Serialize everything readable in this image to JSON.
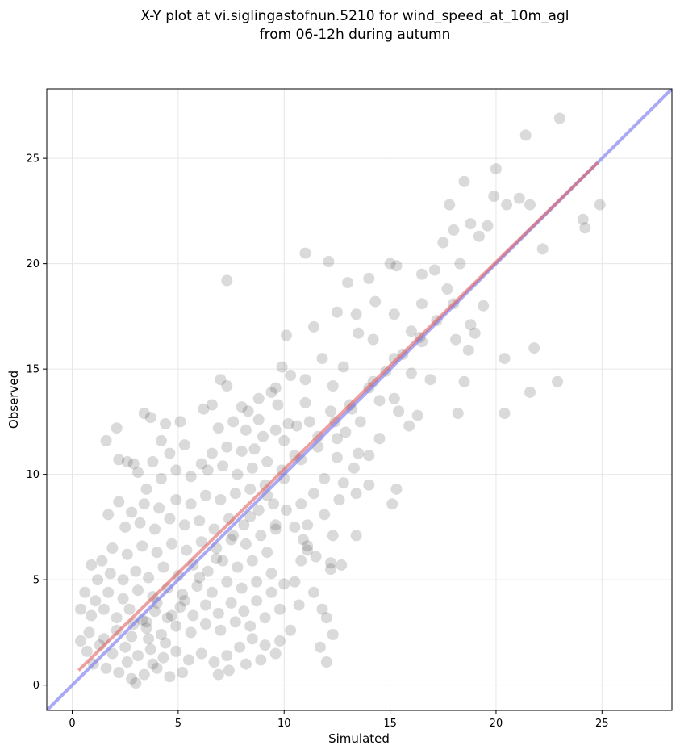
{
  "figure": {
    "title_line1": "X-Y plot at vi.siglingastofnun.5210 for wind_speed_at_10m_agl",
    "title_line2": "from 06-12h during autumn"
  },
  "chart_data": {
    "type": "scatter",
    "title": "X-Y plot at vi.siglingastofnun.5210 for wind_speed_at_10m_agl\nfrom 06-12h during autumn",
    "xlabel": "Simulated",
    "ylabel": "Observed",
    "xlim": [
      -1.2,
      28.3
    ],
    "ylim": [
      -1.2,
      28.3
    ],
    "x_ticks": [
      0,
      5,
      10,
      15,
      20,
      25
    ],
    "y_ticks": [
      0,
      5,
      10,
      15,
      20,
      25
    ],
    "x_tick_labels": [
      "0",
      "5",
      "10",
      "15",
      "20",
      "25"
    ],
    "y_tick_labels": [
      "0",
      "5",
      "10",
      "15",
      "20",
      "25"
    ],
    "grid": true,
    "legend": "none",
    "colors": {
      "points": "#333333",
      "one_to_one_line": "#7b7bf0",
      "fit_line": "#e06060",
      "grid": "#e6e6e6"
    },
    "reference_lines": [
      {
        "kind": "one-to-one",
        "x": [
          -1.2,
          28.3
        ],
        "y": [
          -1.2,
          28.3
        ],
        "color": "#7b7bf0"
      },
      {
        "kind": "regression-fit",
        "x": [
          0.3,
          24.8
        ],
        "y": [
          0.7,
          24.8
        ],
        "color": "#e06060"
      }
    ],
    "series": [
      {
        "marker": "circle",
        "points": [
          [
            23.0,
            26.9
          ],
          [
            21.4,
            26.1
          ],
          [
            20.0,
            24.5
          ],
          [
            17.8,
            22.8
          ],
          [
            18.5,
            23.9
          ],
          [
            19.9,
            23.2
          ],
          [
            20.5,
            22.8
          ],
          [
            21.1,
            23.1
          ],
          [
            21.6,
            22.8
          ],
          [
            24.1,
            22.1
          ],
          [
            24.2,
            21.7
          ],
          [
            24.9,
            22.8
          ],
          [
            22.9,
            14.4
          ],
          [
            21.6,
            13.9
          ],
          [
            21.8,
            16.0
          ],
          [
            20.4,
            15.5
          ],
          [
            20.4,
            12.9
          ],
          [
            22.2,
            20.7
          ],
          [
            11.0,
            20.5
          ],
          [
            12.1,
            20.1
          ],
          [
            7.3,
            19.2
          ],
          [
            13.0,
            19.1
          ],
          [
            14.0,
            19.3
          ],
          [
            15.0,
            20.0
          ],
          [
            15.3,
            19.9
          ],
          [
            16.5,
            19.5
          ],
          [
            17.5,
            21.0
          ],
          [
            18.0,
            21.6
          ],
          [
            18.8,
            21.9
          ],
          [
            19.2,
            21.3
          ],
          [
            19.6,
            21.8
          ],
          [
            18.3,
            20.0
          ],
          [
            17.1,
            19.7
          ],
          [
            16.5,
            18.1
          ],
          [
            17.7,
            18.8
          ],
          [
            18.8,
            17.1
          ],
          [
            19.0,
            16.7
          ],
          [
            19.4,
            18.0
          ],
          [
            18.1,
            16.4
          ],
          [
            18.7,
            15.9
          ],
          [
            18.2,
            12.9
          ],
          [
            18.5,
            14.4
          ],
          [
            16.9,
            14.5
          ],
          [
            16.3,
            12.8
          ],
          [
            15.3,
            9.3
          ],
          [
            15.1,
            8.6
          ],
          [
            11.4,
            17.0
          ],
          [
            12.5,
            17.7
          ],
          [
            13.4,
            17.6
          ],
          [
            14.3,
            18.2
          ],
          [
            15.2,
            17.6
          ],
          [
            16.0,
            16.8
          ],
          [
            16.5,
            16.3
          ],
          [
            15.2,
            15.5
          ],
          [
            14.2,
            16.4
          ],
          [
            13.5,
            16.7
          ],
          [
            12.8,
            15.1
          ],
          [
            11.8,
            15.5
          ],
          [
            11.0,
            14.5
          ],
          [
            10.3,
            14.7
          ],
          [
            9.6,
            14.1
          ],
          [
            9.9,
            15.1
          ],
          [
            10.1,
            16.6
          ],
          [
            12.3,
            14.2
          ],
          [
            13.1,
            13.3
          ],
          [
            14.2,
            14.4
          ],
          [
            15.4,
            13.0
          ],
          [
            15.9,
            12.3
          ],
          [
            16.0,
            14.8
          ],
          [
            15.2,
            13.6
          ],
          [
            14.5,
            13.5
          ],
          [
            13.6,
            12.5
          ],
          [
            12.9,
            12.0
          ],
          [
            12.5,
            11.7
          ],
          [
            12.2,
            13.0
          ],
          [
            11.2,
            12.5
          ],
          [
            11.0,
            13.4
          ],
          [
            10.6,
            12.3
          ],
          [
            11.6,
            11.3
          ],
          [
            12.5,
            10.8
          ],
          [
            13.5,
            11.0
          ],
          [
            14.0,
            10.9
          ],
          [
            13.3,
            10.3
          ],
          [
            12.8,
            9.6
          ],
          [
            11.9,
            9.8
          ],
          [
            11.4,
            9.1
          ],
          [
            10.8,
            8.6
          ],
          [
            11.9,
            8.1
          ],
          [
            12.6,
            8.8
          ],
          [
            13.4,
            9.1
          ],
          [
            11.1,
            7.6
          ],
          [
            10.5,
            7.5
          ],
          [
            9.6,
            7.4
          ],
          [
            10.9,
            6.9
          ],
          [
            11.1,
            6.6
          ],
          [
            12.3,
            7.1
          ],
          [
            12.7,
            5.7
          ],
          [
            11.5,
            6.1
          ],
          [
            13.4,
            7.1
          ],
          [
            14.0,
            9.5
          ],
          [
            14.5,
            11.7
          ],
          [
            7.0,
            14.5
          ],
          [
            7.3,
            14.2
          ],
          [
            8.0,
            13.2
          ],
          [
            8.3,
            13.0
          ],
          [
            8.8,
            13.6
          ],
          [
            9.4,
            13.9
          ],
          [
            9.7,
            13.3
          ],
          [
            8.8,
            12.6
          ],
          [
            8.2,
            12.1
          ],
          [
            7.6,
            12.5
          ],
          [
            6.9,
            12.2
          ],
          [
            6.6,
            13.3
          ],
          [
            6.2,
            13.1
          ],
          [
            5.1,
            12.5
          ],
          [
            4.4,
            12.4
          ],
          [
            3.4,
            12.9
          ],
          [
            3.7,
            12.7
          ],
          [
            2.1,
            12.2
          ],
          [
            1.6,
            11.6
          ],
          [
            2.2,
            10.7
          ],
          [
            2.9,
            10.5
          ],
          [
            2.6,
            10.6
          ],
          [
            9.0,
            11.8
          ],
          [
            8.6,
            11.2
          ],
          [
            8.0,
            11.1
          ],
          [
            7.3,
            11.3
          ],
          [
            6.6,
            11.0
          ],
          [
            6.1,
            10.5
          ],
          [
            5.3,
            11.4
          ],
          [
            4.6,
            11.0
          ],
          [
            4.2,
            11.6
          ],
          [
            3.8,
            10.6
          ],
          [
            3.1,
            10.1
          ],
          [
            3.5,
            9.3
          ],
          [
            4.2,
            9.8
          ],
          [
            4.9,
            10.2
          ],
          [
            5.6,
            9.9
          ],
          [
            6.4,
            10.2
          ],
          [
            7.1,
            10.4
          ],
          [
            7.8,
            10.0
          ],
          [
            8.5,
            10.3
          ],
          [
            9.2,
            10.6
          ],
          [
            9.9,
            10.2
          ],
          [
            10.5,
            10.9
          ],
          [
            10.0,
            11.6
          ],
          [
            9.6,
            12.1
          ],
          [
            10.2,
            12.4
          ],
          [
            9.1,
            9.5
          ],
          [
            8.4,
            9.3
          ],
          [
            7.7,
            9.1
          ],
          [
            7.0,
            8.8
          ],
          [
            6.3,
            9.0
          ],
          [
            5.6,
            8.6
          ],
          [
            4.9,
            8.8
          ],
          [
            4.1,
            8.4
          ],
          [
            3.4,
            8.6
          ],
          [
            2.8,
            8.2
          ],
          [
            2.2,
            8.7
          ],
          [
            1.7,
            8.1
          ],
          [
            2.5,
            7.5
          ],
          [
            3.2,
            7.7
          ],
          [
            3.9,
            7.4
          ],
          [
            4.6,
            7.9
          ],
          [
            5.3,
            7.6
          ],
          [
            6.0,
            7.8
          ],
          [
            6.7,
            7.4
          ],
          [
            7.4,
            7.9
          ],
          [
            8.1,
            7.6
          ],
          [
            8.8,
            8.3
          ],
          [
            9.5,
            8.6
          ],
          [
            10.1,
            8.3
          ],
          [
            9.6,
            7.6
          ],
          [
            8.9,
            7.1
          ],
          [
            8.2,
            6.7
          ],
          [
            7.5,
            6.9
          ],
          [
            6.8,
            6.5
          ],
          [
            6.1,
            6.8
          ],
          [
            5.4,
            6.4
          ],
          [
            4.7,
            6.7
          ],
          [
            4.0,
            6.3
          ],
          [
            3.3,
            6.6
          ],
          [
            2.6,
            6.2
          ],
          [
            1.9,
            6.5
          ],
          [
            1.4,
            5.9
          ],
          [
            0.9,
            5.7
          ],
          [
            1.2,
            5.0
          ],
          [
            1.8,
            5.3
          ],
          [
            2.4,
            5.0
          ],
          [
            3.0,
            5.4
          ],
          [
            3.6,
            5.1
          ],
          [
            4.3,
            5.6
          ],
          [
            5.0,
            5.2
          ],
          [
            5.7,
            5.7
          ],
          [
            6.4,
            5.4
          ],
          [
            7.1,
            5.9
          ],
          [
            7.8,
            5.6
          ],
          [
            8.5,
            5.9
          ],
          [
            9.2,
            6.3
          ],
          [
            9.4,
            5.3
          ],
          [
            8.7,
            4.9
          ],
          [
            8.0,
            4.6
          ],
          [
            7.3,
            4.9
          ],
          [
            6.6,
            4.4
          ],
          [
            5.9,
            4.7
          ],
          [
            5.2,
            4.3
          ],
          [
            4.5,
            4.6
          ],
          [
            3.8,
            4.2
          ],
          [
            3.1,
            4.5
          ],
          [
            2.4,
            4.1
          ],
          [
            1.7,
            4.4
          ],
          [
            1.1,
            4.0
          ],
          [
            0.6,
            4.4
          ],
          [
            0.4,
            3.6
          ],
          [
            0.9,
            3.3
          ],
          [
            1.5,
            3.6
          ],
          [
            2.1,
            3.2
          ],
          [
            2.7,
            3.6
          ],
          [
            3.3,
            3.1
          ],
          [
            3.9,
            3.5
          ],
          [
            4.5,
            3.2
          ],
          [
            5.1,
            3.7
          ],
          [
            5.7,
            3.3
          ],
          [
            6.3,
            3.8
          ],
          [
            6.9,
            3.4
          ],
          [
            7.5,
            3.9
          ],
          [
            8.1,
            3.5
          ],
          [
            8.7,
            4.0
          ],
          [
            9.4,
            4.4
          ],
          [
            10.0,
            4.8
          ],
          [
            9.8,
            3.6
          ],
          [
            9.1,
            3.2
          ],
          [
            8.4,
            2.8
          ],
          [
            7.7,
            3.0
          ],
          [
            7.0,
            2.6
          ],
          [
            6.3,
            2.9
          ],
          [
            5.6,
            2.5
          ],
          [
            4.9,
            2.8
          ],
          [
            4.2,
            2.4
          ],
          [
            3.5,
            2.7
          ],
          [
            2.8,
            2.3
          ],
          [
            2.1,
            2.6
          ],
          [
            1.5,
            2.2
          ],
          [
            0.8,
            2.5
          ],
          [
            0.4,
            2.1
          ],
          [
            0.7,
            1.6
          ],
          [
            1.3,
            1.9
          ],
          [
            1.9,
            1.5
          ],
          [
            2.5,
            1.8
          ],
          [
            3.1,
            1.4
          ],
          [
            3.7,
            1.7
          ],
          [
            4.3,
            1.3
          ],
          [
            4.9,
            1.6
          ],
          [
            5.5,
            1.2
          ],
          [
            6.1,
            1.5
          ],
          [
            6.7,
            1.1
          ],
          [
            7.3,
            1.4
          ],
          [
            7.9,
            1.8
          ],
          [
            8.5,
            2.2
          ],
          [
            9.1,
            1.9
          ],
          [
            9.8,
            2.1
          ],
          [
            10.3,
            2.6
          ],
          [
            9.6,
            1.5
          ],
          [
            8.9,
            1.2
          ],
          [
            8.2,
            1.0
          ],
          [
            7.4,
            0.7
          ],
          [
            6.9,
            0.5
          ],
          [
            1.0,
            1.0
          ],
          [
            1.6,
            0.8
          ],
          [
            2.2,
            0.6
          ],
          [
            2.8,
            0.3
          ],
          [
            3.4,
            0.5
          ],
          [
            4.0,
            0.8
          ],
          [
            4.6,
            0.4
          ],
          [
            5.2,
            0.6
          ],
          [
            3.0,
            0.1
          ],
          [
            11.7,
            1.8
          ],
          [
            12.0,
            1.1
          ],
          [
            12.3,
            2.4
          ],
          [
            11.8,
            3.6
          ],
          [
            12.0,
            3.2
          ],
          [
            11.4,
            4.4
          ],
          [
            12.2,
            5.5
          ],
          [
            12.2,
            5.8
          ],
          [
            10.7,
            3.8
          ],
          [
            10.5,
            4.9
          ],
          [
            10.8,
            5.9
          ],
          [
            11.1,
            6.4
          ],
          [
            3.5,
            3.0
          ],
          [
            4.0,
            3.9
          ],
          [
            2.9,
            2.9
          ],
          [
            3.6,
            2.2
          ],
          [
            4.4,
            2.0
          ],
          [
            2.6,
            1.1
          ],
          [
            3.8,
            1.0
          ],
          [
            4.7,
            3.3
          ],
          [
            5.3,
            4.0
          ],
          [
            6.0,
            5.1
          ],
          [
            6.8,
            6.0
          ],
          [
            7.6,
            7.1
          ],
          [
            8.4,
            8.0
          ],
          [
            9.2,
            9.0
          ],
          [
            10.0,
            9.8
          ],
          [
            10.8,
            10.7
          ],
          [
            11.6,
            11.8
          ],
          [
            12.4,
            12.5
          ],
          [
            13.2,
            13.1
          ],
          [
            14.0,
            14.1
          ],
          [
            14.8,
            14.9
          ],
          [
            15.6,
            15.7
          ],
          [
            16.4,
            16.5
          ],
          [
            17.2,
            17.3
          ],
          [
            18.0,
            18.1
          ]
        ]
      }
    ]
  }
}
